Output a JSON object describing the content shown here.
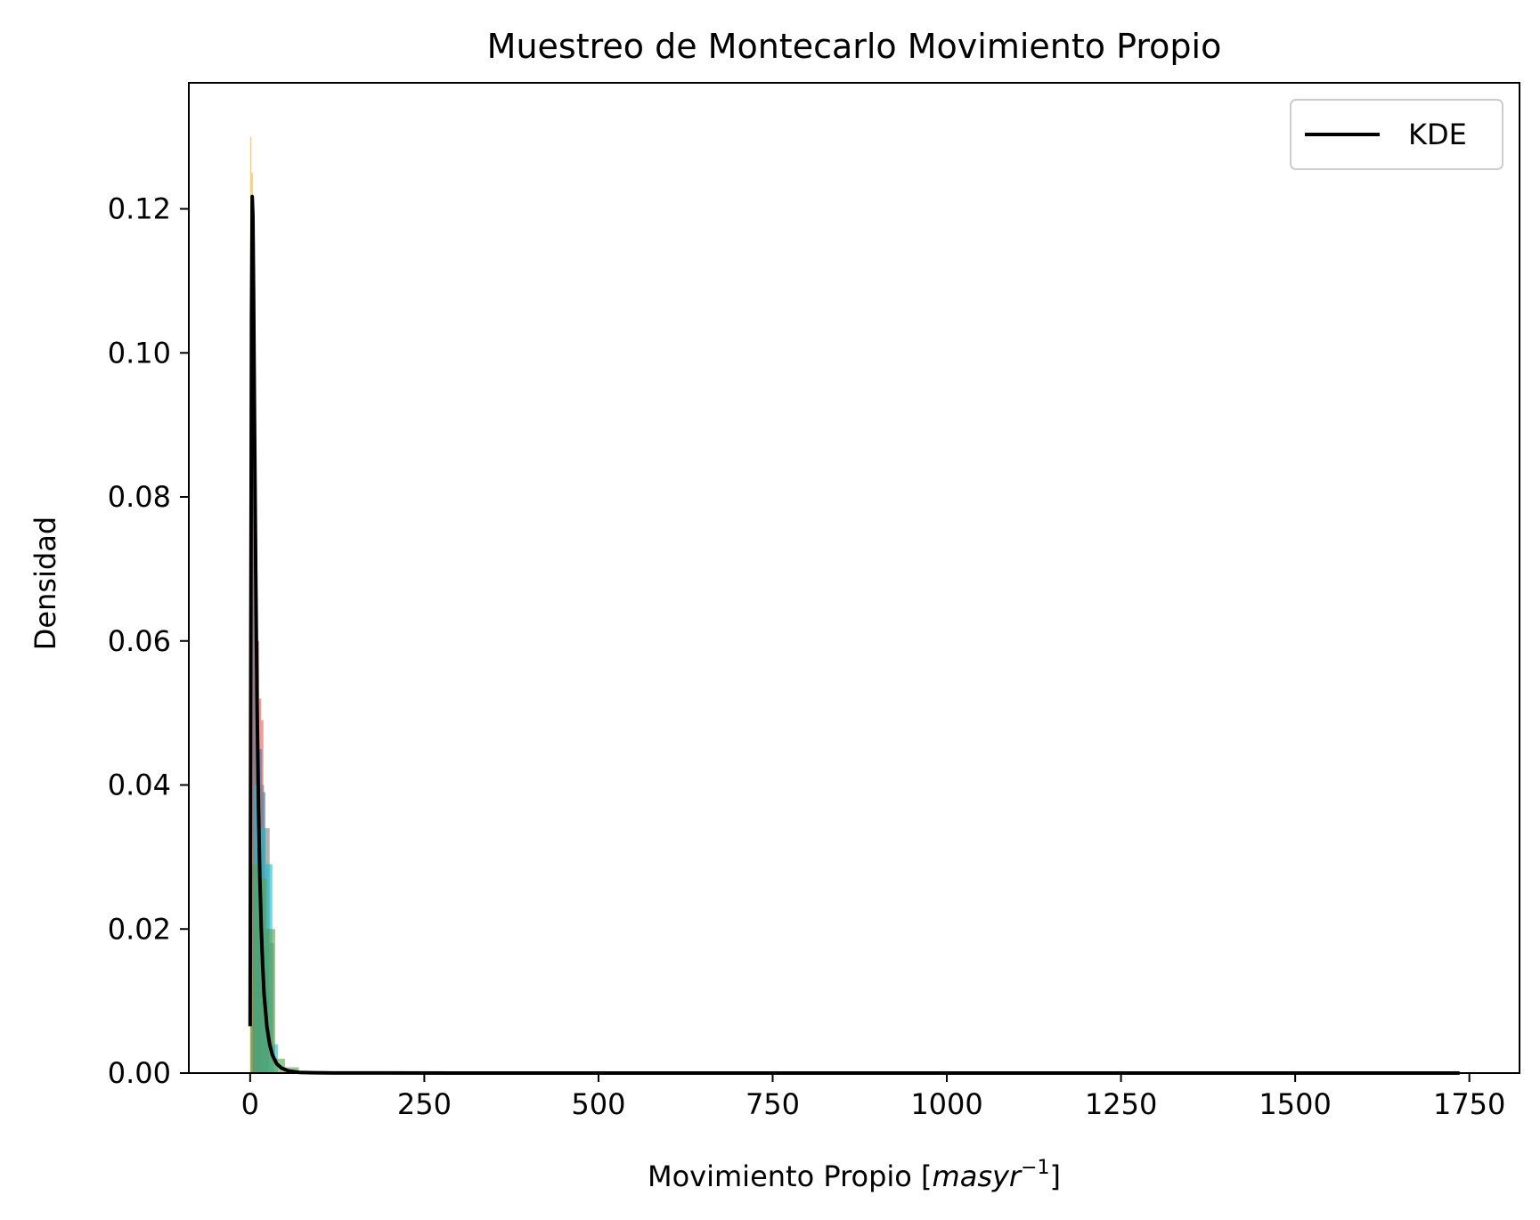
{
  "chart_data": {
    "type": "histogram",
    "title": "Muestreo de Montecarlo Movimiento Propio",
    "xlabel_prefix": "Movimiento Propio [",
    "xlabel_math": "masyr",
    "xlabel_exp": "−1",
    "xlabel_suffix": "]",
    "ylabel": "Densidad",
    "xlim": [
      -88,
      1822
    ],
    "ylim": [
      0,
      0.1375
    ],
    "x_ticks": [
      0,
      250,
      500,
      750,
      1000,
      1250,
      1500,
      1750
    ],
    "x_tick_labels": [
      "0",
      "250",
      "500",
      "750",
      "1000",
      "1250",
      "1500",
      "1750"
    ],
    "y_ticks": [
      0.0,
      0.02,
      0.04,
      0.06,
      0.08,
      0.1,
      0.12
    ],
    "y_tick_labels": [
      "0.00",
      "0.02",
      "0.04",
      "0.06",
      "0.08",
      "0.10",
      "0.12"
    ],
    "grid": false,
    "legend": {
      "position": "upper-right",
      "entries": [
        {
          "label": "KDE",
          "color": "#000000"
        }
      ]
    },
    "histogram_series": [
      {
        "color": "#f0b428",
        "bins": [
          [
            0,
            2,
            0.13
          ],
          [
            2,
            4,
            0.125
          ],
          [
            4,
            6,
            0.11
          ],
          [
            6,
            8,
            0.09
          ],
          [
            8,
            10,
            0.07
          ],
          [
            10,
            12,
            0.058
          ],
          [
            12,
            14,
            0.045
          ]
        ]
      },
      {
        "color": "#e15759",
        "bins": [
          [
            2,
            4,
            0.12
          ],
          [
            4,
            7,
            0.1
          ],
          [
            7,
            10,
            0.075
          ],
          [
            10,
            13,
            0.06
          ],
          [
            13,
            16,
            0.052
          ],
          [
            16,
            19,
            0.049
          ]
        ]
      },
      {
        "color": "#4e79a7",
        "bins": [
          [
            4,
            8,
            0.09
          ],
          [
            8,
            12,
            0.06
          ],
          [
            12,
            17,
            0.045
          ],
          [
            17,
            22,
            0.039
          ],
          [
            22,
            27,
            0.02
          ]
        ]
      },
      {
        "color": "#7f7f7f",
        "bins": [
          [
            8,
            14,
            0.045
          ],
          [
            14,
            20,
            0.04
          ],
          [
            20,
            28,
            0.034
          ],
          [
            28,
            34,
            0.018
          ]
        ]
      },
      {
        "color": "#17becf",
        "bins": [
          [
            6,
            14,
            0.04
          ],
          [
            14,
            22,
            0.034
          ],
          [
            22,
            32,
            0.029
          ],
          [
            32,
            40,
            0.004
          ]
        ]
      },
      {
        "color": "#59a14f",
        "bins": [
          [
            0,
            12,
            0.029
          ],
          [
            12,
            24,
            0.027
          ],
          [
            24,
            36,
            0.02
          ],
          [
            36,
            50,
            0.002
          ],
          [
            50,
            70,
            0.0008
          ]
        ]
      }
    ],
    "kde": {
      "label": "KDE",
      "color": "#000000",
      "x": [
        0,
        1,
        2,
        3,
        4,
        5,
        6,
        7,
        8,
        9,
        10,
        12,
        14,
        16,
        18,
        20,
        24,
        28,
        32,
        38,
        45,
        55,
        70,
        90,
        120,
        200,
        400,
        800,
        1200,
        1600,
        1736
      ],
      "y": [
        0.0065,
        0.06,
        0.105,
        0.1217,
        0.119,
        0.108,
        0.094,
        0.082,
        0.07,
        0.06,
        0.051,
        0.037,
        0.027,
        0.02,
        0.015,
        0.011,
        0.0065,
        0.004,
        0.0025,
        0.0013,
        0.0007,
        0.0003,
        0.0001,
        5e-05,
        2e-05,
        1e-05,
        5e-06,
        2e-06,
        1e-06,
        5e-07,
        3e-07
      ]
    }
  }
}
